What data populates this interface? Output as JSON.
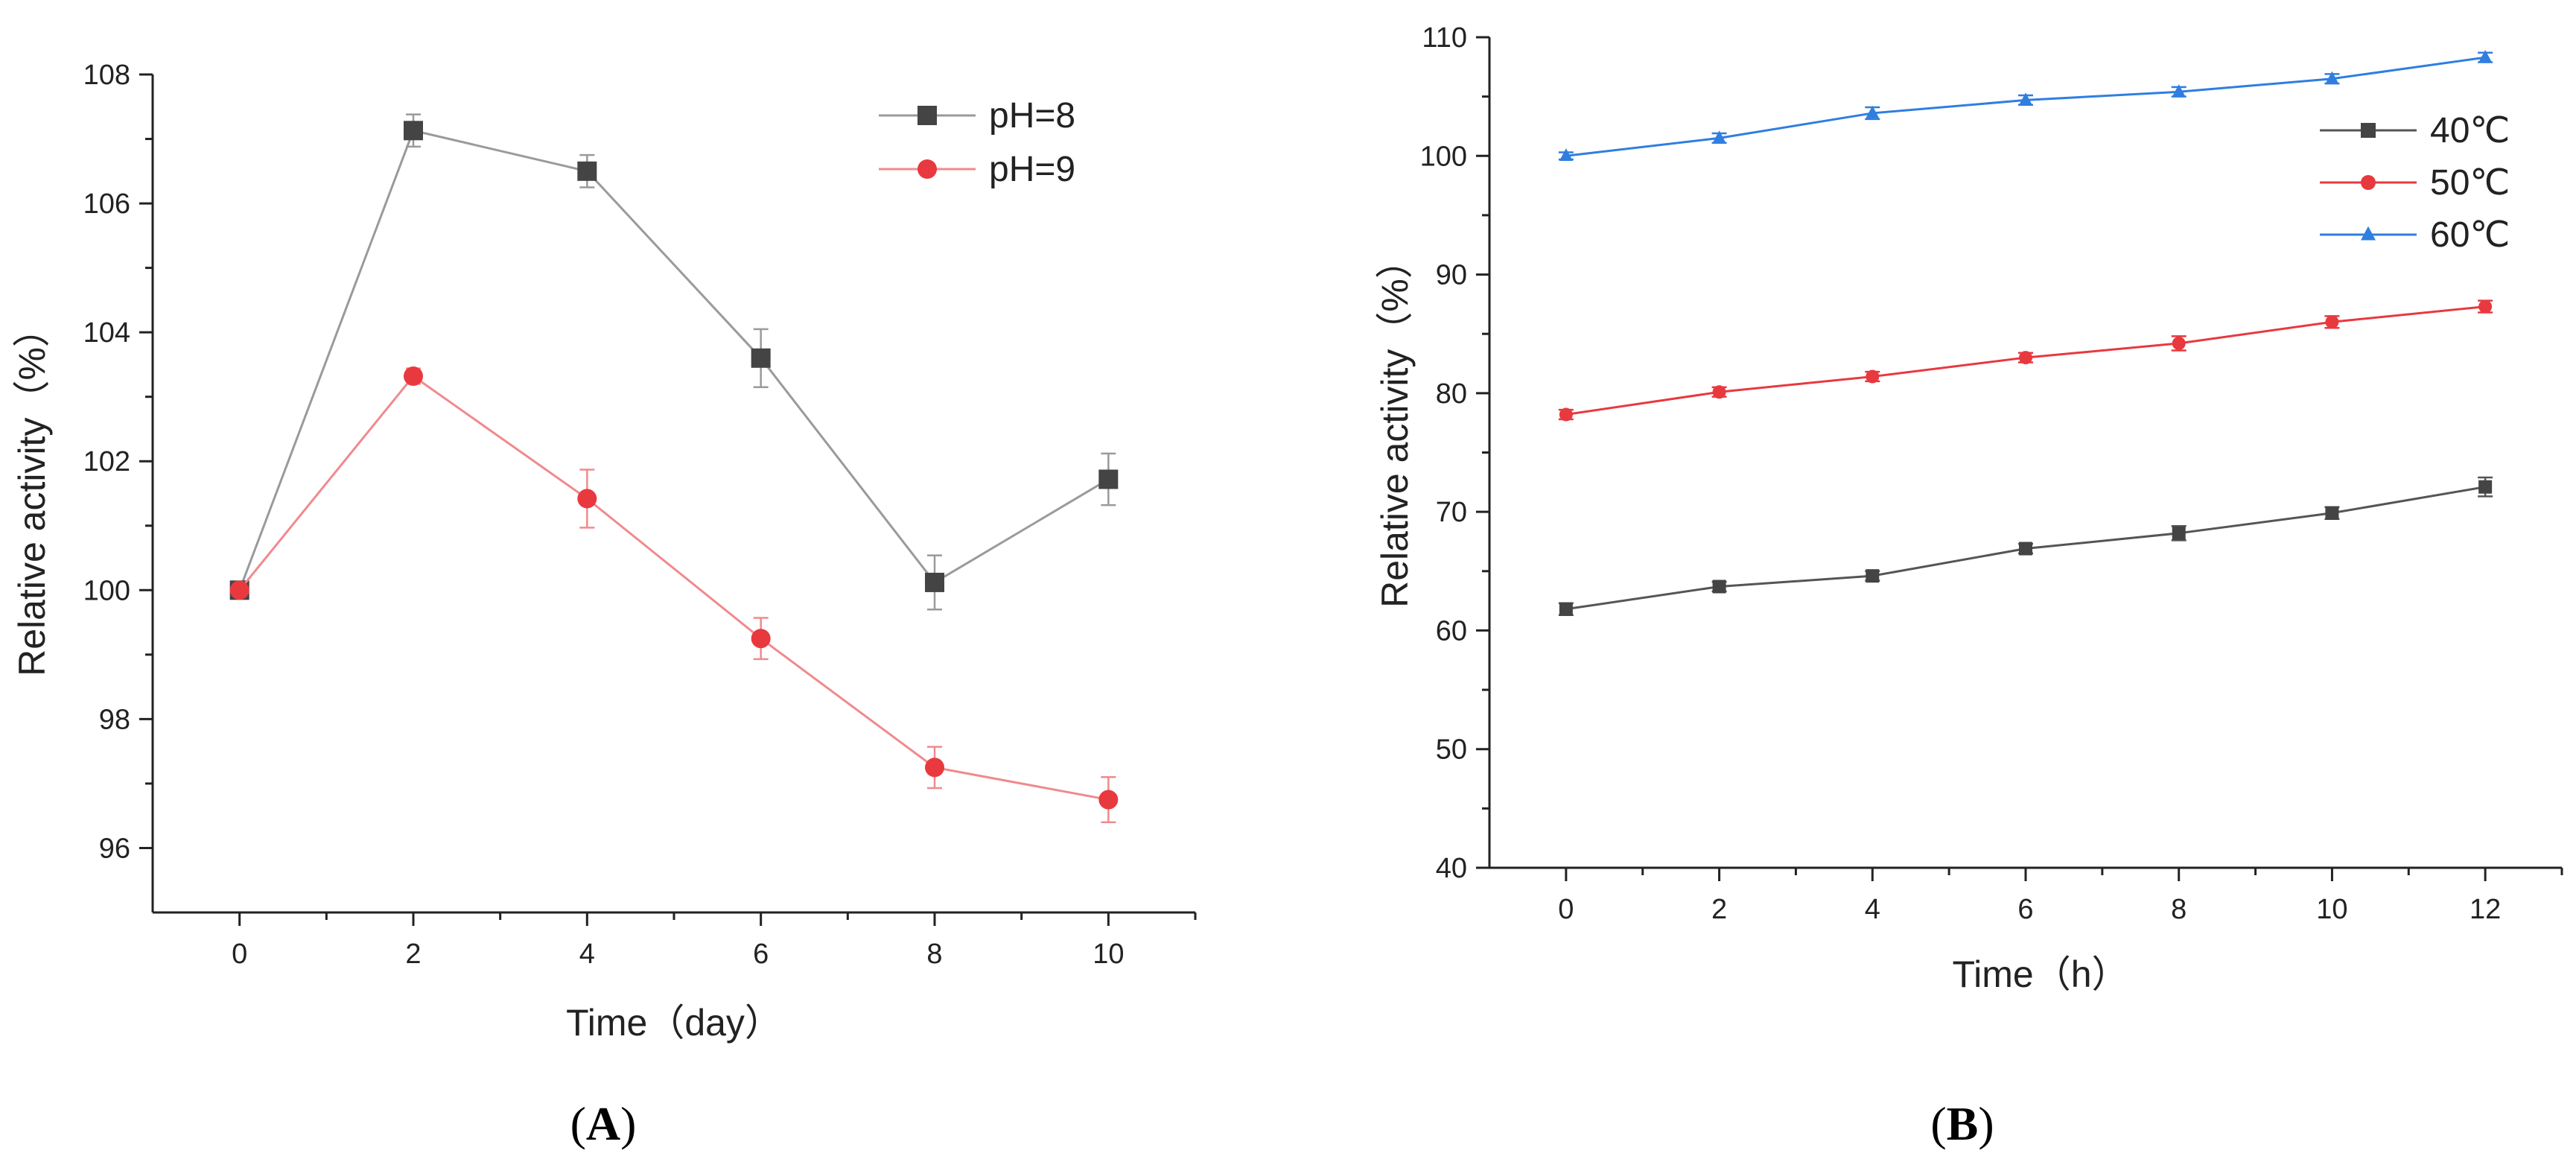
{
  "chart_data": [
    {
      "type": "line",
      "panel_label": "A",
      "xlabel": "Time（day）",
      "ylabel": "Relative activity（%）",
      "xlim": [
        -1,
        11
      ],
      "ylim": [
        95,
        108
      ],
      "x_ticks": [
        0,
        2,
        4,
        6,
        8,
        10
      ],
      "y_ticks": [
        96,
        98,
        100,
        102,
        104,
        106,
        108
      ],
      "legend_position": "top-right",
      "x": [
        0,
        2,
        4,
        6,
        8,
        10
      ],
      "series": [
        {
          "name": "pH=8",
          "color": "#444444",
          "line_color": "#9a9a9a",
          "marker": "square",
          "values": [
            100.0,
            107.13,
            106.5,
            103.6,
            100.12,
            101.72
          ],
          "errors": [
            0.05,
            0.25,
            0.25,
            0.45,
            0.42,
            0.4
          ]
        },
        {
          "name": "pH=9",
          "color": "#e8393f",
          "line_color": "#f08a8e",
          "marker": "circle",
          "values": [
            100.0,
            103.32,
            101.42,
            99.25,
            97.25,
            96.75
          ],
          "errors": [
            0.05,
            0.12,
            0.45,
            0.32,
            0.32,
            0.35
          ]
        }
      ]
    },
    {
      "type": "line",
      "panel_label": "B",
      "xlabel": "Time（h）",
      "ylabel": "Relative activity（%）",
      "xlim": [
        -1,
        13
      ],
      "ylim": [
        40,
        110
      ],
      "x_ticks": [
        0,
        2,
        4,
        6,
        8,
        10,
        12
      ],
      "y_ticks": [
        40,
        50,
        60,
        70,
        80,
        90,
        100,
        110
      ],
      "legend_position": "top-right",
      "x": [
        0,
        2,
        4,
        6,
        8,
        10,
        12
      ],
      "series": [
        {
          "name": "40℃",
          "color": "#444444",
          "line_color": "#555555",
          "marker": "square",
          "values": [
            61.8,
            63.7,
            64.6,
            66.9,
            68.2,
            69.9,
            72.1
          ],
          "errors": [
            0.5,
            0.4,
            0.4,
            0.4,
            0.6,
            0.5,
            0.8
          ]
        },
        {
          "name": "50℃",
          "color": "#e8393f",
          "line_color": "#e8393f",
          "marker": "circle",
          "values": [
            78.2,
            80.1,
            81.4,
            83.0,
            84.2,
            86.0,
            87.3
          ],
          "errors": [
            0.4,
            0.4,
            0.4,
            0.4,
            0.6,
            0.5,
            0.5
          ]
        },
        {
          "name": "60℃",
          "color": "#2f7ee0",
          "line_color": "#2f7ee0",
          "marker": "triangle",
          "values": [
            100.0,
            101.5,
            103.6,
            104.7,
            105.4,
            106.5,
            108.3
          ],
          "errors": [
            0.3,
            0.4,
            0.5,
            0.4,
            0.4,
            0.4,
            0.4
          ]
        }
      ]
    }
  ]
}
